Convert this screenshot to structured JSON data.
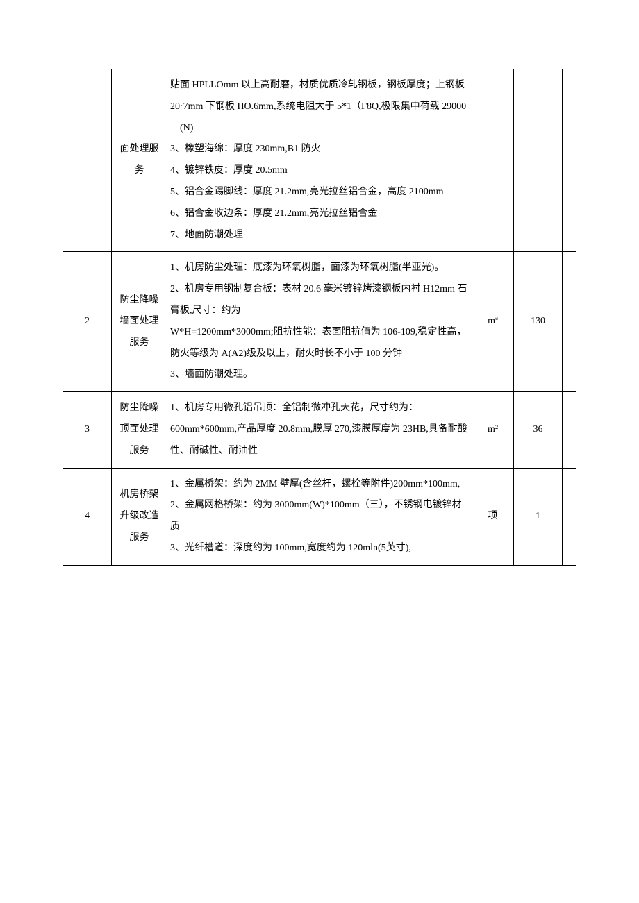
{
  "table": {
    "rows": [
      {
        "num": "",
        "name": "面处理服务",
        "desc": "贴面 HPLLOmm 以上高耐磨，材质优质冷轧钢板，钢板厚度；上钢板 20·7mm 下钢板 HO.6mm,系统电阻大于 5*1（Γ8Q,极限集中荷载 29000\n　(N)\n3、橡塑海绵：厚度 230mm,B1 防火\n4、镀锌铁皮：厚度 20.5mm\n5、铝合金踢脚线：厚度 21.2mm,亮光拉丝铝合金，高度 2100mm\n6、铝合金收边条：厚度 21.2mm,亮光拉丝铝合金\n7、地面防潮处理",
        "unit": "",
        "qty": "",
        "topOpen": true
      },
      {
        "num": "2",
        "name": "防尘降噪墙面处理服务",
        "desc": "1、机房防尘处理：底漆为环氧树脂，面漆为环氧树脂(半亚光)。\n2、机房专用钢制复合板：表材 20.6 毫米镀锌烤漆钢板内衬 H12mm 石膏板,尺寸：约为\nW*H=1200mm*3000mm;阻抗性能：表面阻抗值为 106-109,稳定性高，防火等级为 A(A2)级及以上，耐火时长不小于 100 分钟\n3、墙面防潮处理。",
        "unit": "mª",
        "qty": "130",
        "topOpen": false
      },
      {
        "num": "3",
        "name": "防尘降噪顶面处理服务",
        "desc": "1、机房专用微孔铝吊顶：全铝制微冲孔天花，尺寸约为：600mm*600mm,产品厚度 20.8mm,膜厚 270,漆膜厚度为 23HB,具备耐酸性、耐碱性、耐油性",
        "unit": "m²",
        "qty": "36",
        "topOpen": false
      },
      {
        "num": "4",
        "name": "机房桥架升级改造服务",
        "desc": "1、金属桥架：约为 2MM 壁厚(含丝杆，螺栓等附件)200mm*100mm,\n2、金属网格桥架：约为 3000mm(W)*100mm（三），不锈钢电镀锌材质\n3、光纤槽道：深度约为 100mm,宽度约为 120mln(5英寸),",
        "unit": "项",
        "qty": "1",
        "topOpen": false
      }
    ]
  }
}
